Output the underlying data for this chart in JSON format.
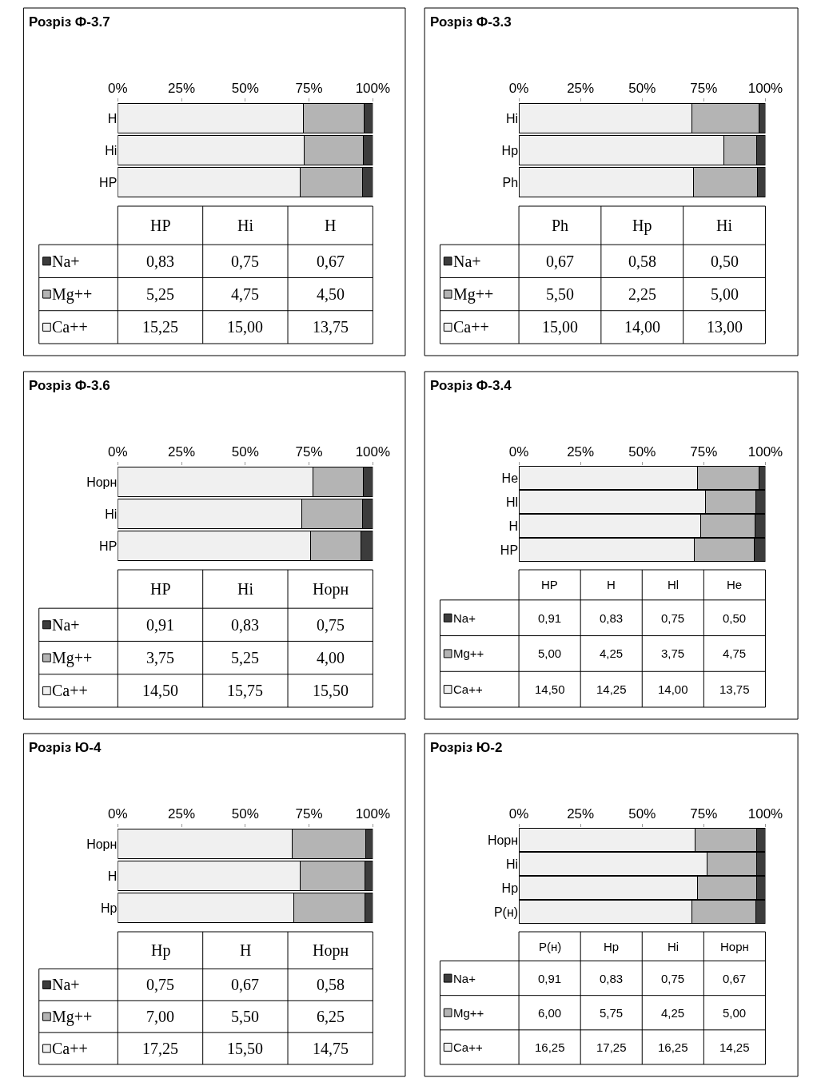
{
  "chart_data": [
    {
      "type": "bar",
      "orientation": "horizontal",
      "stacked": true,
      "legend": "bottom left",
      "title": "Розріз Ф-3.7",
      "categories": [
        "H",
        "Hi",
        "HP"
      ],
      "xlim": [
        0,
        100
      ],
      "xticks": [
        {
          "value": 0,
          "label": "0%"
        },
        {
          "value": 25,
          "label": "25%"
        },
        {
          "value": 50,
          "label": "50%"
        },
        {
          "value": 75,
          "label": "75%"
        },
        {
          "value": 100,
          "label": "100%"
        }
      ],
      "series": [
        {
          "name": "Ca++",
          "color": "#f0f0f0",
          "values": [
            72.7,
            73.2,
            71.5
          ]
        },
        {
          "name": "Mg++",
          "color": "#b4b4b4",
          "values": [
            23.8,
            23.2,
            24.6
          ]
        },
        {
          "name": "Na+",
          "color": "#3c3c3c",
          "values": [
            3.5,
            3.6,
            3.9
          ]
        }
      ],
      "annotations": [
        "0,83",
        "0,75",
        "0,67",
        "5,25",
        "4,75",
        "4,50",
        "15,25",
        "15,00",
        "13,75"
      ]
    },
    {
      "type": "bar",
      "orientation": "horizontal",
      "stacked": true,
      "legend": "bottom left",
      "title": "Розріз Ф-3.3",
      "categories": [
        "Hi",
        "Hp",
        "Ph"
      ],
      "xlim": [
        0,
        100
      ],
      "xticks": [
        {
          "value": 0,
          "label": "0%"
        },
        {
          "value": 25,
          "label": "25%"
        },
        {
          "value": 50,
          "label": "50%"
        },
        {
          "value": 75,
          "label": "75%"
        },
        {
          "value": 100,
          "label": "100%"
        }
      ],
      "series": [
        {
          "name": "Ca++",
          "color": "#f0f0f0",
          "values": [
            70.3,
            83.2,
            70.9
          ]
        },
        {
          "name": "Mg++",
          "color": "#b4b4b4",
          "values": [
            27.0,
            13.4,
            26.0
          ]
        },
        {
          "name": "Na+",
          "color": "#3c3c3c",
          "values": [
            2.7,
            3.4,
            3.1
          ]
        }
      ],
      "annotations": [
        "0,67",
        "0,58",
        "0,50",
        "5,50",
        "2,25",
        "5,00",
        "15,00",
        "14,00",
        "13,00"
      ]
    },
    {
      "type": "bar",
      "orientation": "horizontal",
      "stacked": true,
      "legend": "bottom left",
      "title": "Розріз Ф-3.6",
      "categories": [
        "Норн",
        "Hi",
        "HP"
      ],
      "xlim": [
        0,
        100
      ],
      "xticks": [
        {
          "value": 0,
          "label": "0%"
        },
        {
          "value": 25,
          "label": "25%"
        },
        {
          "value": 50,
          "label": "50%"
        },
        {
          "value": 75,
          "label": "75%"
        },
        {
          "value": 100,
          "label": "100%"
        }
      ],
      "series": [
        {
          "name": "Ca++",
          "color": "#f0f0f0",
          "values": [
            76.5,
            72.1,
            75.7
          ]
        },
        {
          "name": "Mg++",
          "color": "#b4b4b4",
          "values": [
            19.8,
            24.0,
            19.6
          ]
        },
        {
          "name": "Na+",
          "color": "#3c3c3c",
          "values": [
            3.7,
            3.8,
            4.7
          ]
        }
      ],
      "annotations": [
        "0,91",
        "0,83",
        "0,75",
        "3,75",
        "5,25",
        "4,00",
        "14,50",
        "15,75",
        "15,50"
      ]
    },
    {
      "type": "bar",
      "orientation": "horizontal",
      "stacked": true,
      "legend": "bottom left",
      "title": "Розріз Ф-3.4",
      "categories": [
        "He",
        "Hl",
        "H",
        "HP"
      ],
      "xlim": [
        0,
        100
      ],
      "xticks": [
        {
          "value": 0,
          "label": "0%"
        },
        {
          "value": 25,
          "label": "25%"
        },
        {
          "value": 50,
          "label": "50%"
        },
        {
          "value": 75,
          "label": "75%"
        },
        {
          "value": 100,
          "label": "100%"
        }
      ],
      "series": [
        {
          "name": "Ca++",
          "color": "#f0f0f0",
          "values": [
            72.4,
            75.7,
            73.7,
            71.0
          ]
        },
        {
          "name": "Mg++",
          "color": "#b4b4b4",
          "values": [
            25.0,
            20.3,
            22.0,
            24.5
          ]
        },
        {
          "name": "Na+",
          "color": "#3c3c3c",
          "values": [
            2.6,
            4.0,
            4.3,
            4.5
          ]
        }
      ],
      "annotations": [
        "0,91",
        "0,83",
        "0,75",
        "0,50",
        "5,00",
        "4,25",
        "3,75",
        "4,75",
        "14,50",
        "14,25",
        "14,00",
        "13,75"
      ]
    },
    {
      "type": "bar",
      "orientation": "horizontal",
      "stacked": true,
      "legend": "bottom left",
      "title": "Розріз Ю-4",
      "categories": [
        "Норн",
        "H",
        "Hp"
      ],
      "xlim": [
        0,
        100
      ],
      "xticks": [
        {
          "value": 0,
          "label": "0%"
        },
        {
          "value": 25,
          "label": "25%"
        },
        {
          "value": 50,
          "label": "50%"
        },
        {
          "value": 75,
          "label": "75%"
        },
        {
          "value": 100,
          "label": "100%"
        }
      ],
      "series": [
        {
          "name": "Ca++",
          "color": "#f0f0f0",
          "values": [
            68.3,
            71.5,
            69.0
          ]
        },
        {
          "name": "Mg++",
          "color": "#b4b4b4",
          "values": [
            29.0,
            25.4,
            28.0
          ]
        },
        {
          "name": "Na+",
          "color": "#3c3c3c",
          "values": [
            2.7,
            3.1,
            3.0
          ]
        }
      ],
      "annotations": [
        "0,75",
        "0,67",
        "0,58",
        "7,00",
        "5,50",
        "6,25",
        "17,25",
        "15,50",
        "14,75"
      ]
    },
    {
      "type": "bar",
      "orientation": "horizontal",
      "stacked": true,
      "legend": "bottom left",
      "title": "Розріз Ю-2",
      "categories": [
        "Норн",
        "Hi",
        "Hp",
        "P(н)"
      ],
      "xlim": [
        0,
        100
      ],
      "xticks": [
        {
          "value": 0,
          "label": "0%"
        },
        {
          "value": 25,
          "label": "25%"
        },
        {
          "value": 50,
          "label": "50%"
        },
        {
          "value": 75,
          "label": "75%"
        },
        {
          "value": 100,
          "label": "100%"
        }
      ],
      "series": [
        {
          "name": "Ca++",
          "color": "#f0f0f0",
          "values": [
            71.5,
            76.5,
            72.4,
            70.2
          ]
        },
        {
          "name": "Mg++",
          "color": "#b4b4b4",
          "values": [
            25.1,
            20.0,
            24.1,
            25.9
          ]
        },
        {
          "name": "Na+",
          "color": "#3c3c3c",
          "values": [
            3.4,
            3.5,
            3.5,
            3.9
          ]
        }
      ],
      "annotations": [
        "0,91",
        "0,83",
        "0,75",
        "0,67",
        "6,00",
        "5,75",
        "4,25",
        "5,00",
        "16,25",
        "17,25",
        "16,25",
        "14,25"
      ]
    }
  ]
}
